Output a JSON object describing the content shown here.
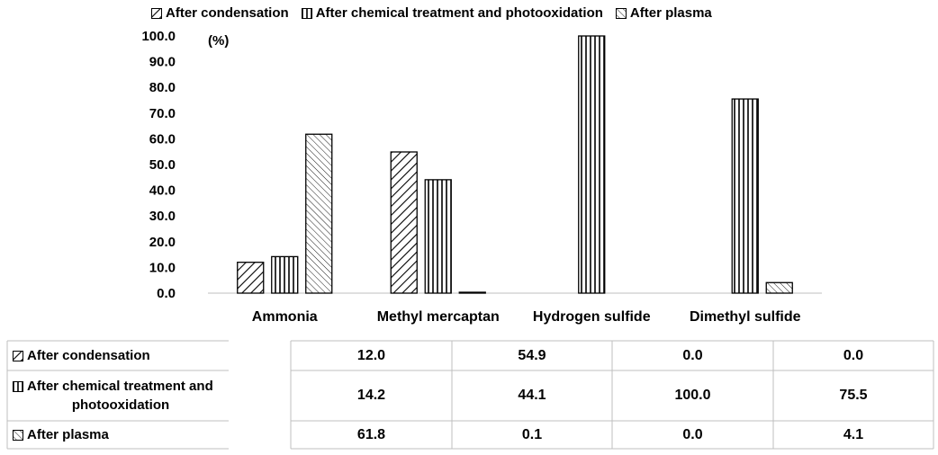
{
  "chart_data": {
    "type": "bar",
    "unit_label": "(%)",
    "categories": [
      "Ammonia",
      "Methyl mercaptan",
      "Hydrogen sulfide",
      "Dimethyl sulfide"
    ],
    "series": [
      {
        "name": "After condensation",
        "values": [
          12.0,
          54.9,
          0.0,
          0.0
        ],
        "pattern": "diag-right"
      },
      {
        "name": "After chemical treatment and photooxidation",
        "values": [
          14.2,
          44.1,
          100.0,
          75.5
        ],
        "pattern": "vertical"
      },
      {
        "name": "After plasma",
        "values": [
          61.8,
          0.1,
          0.0,
          4.1
        ],
        "pattern": "diag-left"
      }
    ],
    "ylim": [
      0,
      100
    ],
    "yticks": [
      "0.0",
      "10.0",
      "20.0",
      "30.0",
      "40.0",
      "50.0",
      "60.0",
      "70.0",
      "80.0",
      "90.0",
      "100.0"
    ],
    "legend_position": "top",
    "grid": false,
    "data_table": {
      "rows": [
        {
          "label": "After condensation",
          "cells": [
            "12.0",
            "54.9",
            "0.0",
            "0.0"
          ]
        },
        {
          "label_line1": "After chemical treatment and",
          "label_line2": "photooxidation",
          "cells": [
            "14.2",
            "44.1",
            "100.0",
            "75.5"
          ]
        },
        {
          "label": "After plasma",
          "cells": [
            "61.8",
            "0.1",
            "0.0",
            "4.1"
          ]
        }
      ]
    }
  }
}
